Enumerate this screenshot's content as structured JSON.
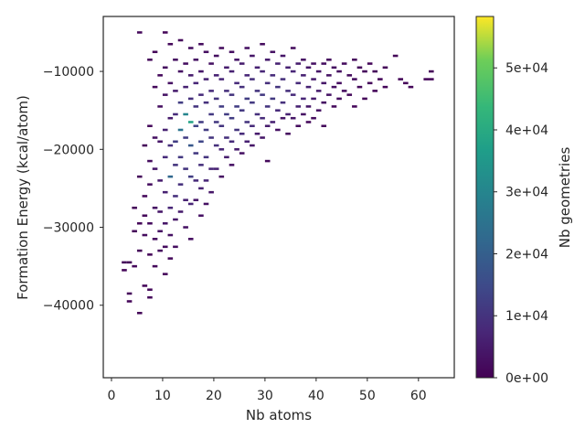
{
  "chart_data": {
    "type": "heatmap",
    "title": "",
    "xlabel": "Nb atoms",
    "ylabel": "Formation Energy (kcal/atom)",
    "xlim": [
      -1.6,
      67
    ],
    "ylim": [
      -49300,
      -2950
    ],
    "xticks": [
      "0",
      "10",
      "20",
      "30",
      "40",
      "50",
      "60"
    ],
    "xtick_values": [
      0,
      10,
      20,
      30,
      40,
      50,
      60
    ],
    "yticks": [
      "−10000",
      "−20000",
      "−30000",
      "−40000"
    ],
    "ytick_values": [
      -10000,
      -20000,
      -30000,
      -40000
    ],
    "grid": false,
    "colormap": "viridis",
    "colorbar": {
      "label": "Nb geometries",
      "range": [
        0,
        58300
      ],
      "ticks": [
        "0e+00",
        "1e+04",
        "2e+04",
        "3e+04",
        "4e+04",
        "5e+04"
      ],
      "tick_values": [
        0,
        10000,
        20000,
        30000,
        40000,
        50000
      ]
    },
    "cell_columns": "[Nb atoms, formation energy, count]",
    "cells": [
      [
        2,
        -34500,
        1500
      ],
      [
        2,
        -35500,
        1000
      ],
      [
        3,
        -38500,
        1200
      ],
      [
        3,
        -39500,
        800
      ],
      [
        3,
        -34500,
        900
      ],
      [
        4,
        -30500,
        1000
      ],
      [
        4,
        -35000,
        1500
      ],
      [
        4,
        -27500,
        800
      ],
      [
        5,
        -5000,
        1500
      ],
      [
        5,
        -23500,
        1200
      ],
      [
        5,
        -29500,
        1000
      ],
      [
        5,
        -41000,
        900
      ],
      [
        5,
        -33000,
        1100
      ],
      [
        6,
        -19500,
        1000
      ],
      [
        6,
        -26000,
        1500
      ],
      [
        6,
        -31000,
        2000
      ],
      [
        6,
        -37500,
        1000
      ],
      [
        6,
        -28500,
        1200
      ],
      [
        7,
        -8500,
        1200
      ],
      [
        7,
        -17000,
        1500
      ],
      [
        7,
        -21500,
        2000
      ],
      [
        7,
        -24500,
        2500
      ],
      [
        7,
        -29500,
        1800
      ],
      [
        7,
        -33500,
        1000
      ],
      [
        7,
        -38000,
        1500
      ],
      [
        7,
        -39000,
        1200
      ],
      [
        8,
        -7500,
        1000
      ],
      [
        8,
        -12000,
        1500
      ],
      [
        8,
        -18500,
        3000
      ],
      [
        8,
        -22500,
        4000
      ],
      [
        8,
        -27500,
        3000
      ],
      [
        8,
        -31500,
        2000
      ],
      [
        8,
        -35000,
        1500
      ],
      [
        9,
        -10500,
        1500
      ],
      [
        9,
        -14500,
        2500
      ],
      [
        9,
        -19000,
        4000
      ],
      [
        9,
        -24000,
        5000
      ],
      [
        9,
        -28000,
        4000
      ],
      [
        9,
        -30500,
        3000
      ],
      [
        9,
        -33000,
        2000
      ],
      [
        10,
        -5000,
        1000
      ],
      [
        10,
        -9500,
        2000
      ],
      [
        10,
        -13000,
        3500
      ],
      [
        10,
        -17500,
        6000
      ],
      [
        10,
        -21000,
        8000
      ],
      [
        10,
        -25500,
        6000
      ],
      [
        10,
        -29500,
        4000
      ],
      [
        10,
        -32500,
        2000
      ],
      [
        10,
        -36000,
        1200
      ],
      [
        11,
        -6500,
        1500
      ],
      [
        11,
        -11500,
        3000
      ],
      [
        11,
        -16000,
        5000
      ],
      [
        11,
        -19500,
        9000
      ],
      [
        11,
        -23500,
        22000
      ],
      [
        11,
        -27500,
        7000
      ],
      [
        11,
        -31000,
        3000
      ],
      [
        11,
        -34000,
        1500
      ],
      [
        12,
        -8500,
        2500
      ],
      [
        12,
        -12500,
        5000
      ],
      [
        12,
        -15500,
        8000
      ],
      [
        12,
        -19000,
        12000
      ],
      [
        12,
        -22000,
        10000
      ],
      [
        12,
        -26000,
        9000
      ],
      [
        12,
        -29000,
        4000
      ],
      [
        12,
        -32500,
        2500
      ],
      [
        13,
        -6000,
        1500
      ],
      [
        13,
        -10000,
        3000
      ],
      [
        13,
        -14000,
        12000
      ],
      [
        13,
        -17500,
        25000
      ],
      [
        13,
        -21000,
        11000
      ],
      [
        13,
        -24500,
        9000
      ],
      [
        13,
        -28000,
        5000
      ],
      [
        14,
        -9000,
        2500
      ],
      [
        14,
        -12000,
        6000
      ],
      [
        14,
        -15500,
        30000
      ],
      [
        14,
        -18500,
        12000
      ],
      [
        14,
        -22500,
        10000
      ],
      [
        14,
        -26500,
        6000
      ],
      [
        14,
        -30000,
        3000
      ],
      [
        15,
        -7000,
        2500
      ],
      [
        15,
        -10500,
        5000
      ],
      [
        15,
        -13500,
        9000
      ],
      [
        15,
        -16500,
        38000
      ],
      [
        15,
        -19500,
        18000
      ],
      [
        15,
        -23500,
        12000
      ],
      [
        15,
        -27000,
        7000
      ],
      [
        15,
        -31500,
        2500
      ],
      [
        16,
        -8500,
        3000
      ],
      [
        16,
        -11500,
        7000
      ],
      [
        16,
        -14500,
        10000
      ],
      [
        16,
        -17000,
        14000
      ],
      [
        16,
        -20500,
        11000
      ],
      [
        16,
        -24000,
        8000
      ],
      [
        16,
        -26500,
        4000
      ],
      [
        17,
        -6500,
        2000
      ],
      [
        17,
        -10000,
        4000
      ],
      [
        17,
        -13000,
        8000
      ],
      [
        17,
        -16500,
        12000
      ],
      [
        17,
        -19000,
        14000
      ],
      [
        17,
        -22000,
        9000
      ],
      [
        17,
        -25000,
        6000
      ],
      [
        17,
        -28500,
        3000
      ],
      [
        18,
        -7500,
        2500
      ],
      [
        18,
        -11000,
        6000
      ],
      [
        18,
        -14000,
        9000
      ],
      [
        18,
        -17500,
        12000
      ],
      [
        18,
        -21000,
        10000
      ],
      [
        18,
        -24000,
        7000
      ],
      [
        18,
        -27000,
        3000
      ],
      [
        19,
        -9000,
        3000
      ],
      [
        19,
        -12500,
        8000
      ],
      [
        19,
        -15500,
        11000
      ],
      [
        19,
        -18500,
        10000
      ],
      [
        19,
        -22500,
        7000
      ],
      [
        19,
        -25500,
        4000
      ],
      [
        20,
        -8000,
        2500
      ],
      [
        20,
        -10500,
        6000
      ],
      [
        20,
        -13500,
        10000
      ],
      [
        20,
        -16500,
        11000
      ],
      [
        20,
        -19500,
        9000
      ],
      [
        20,
        -22500,
        6000
      ],
      [
        21,
        -7000,
        2000
      ],
      [
        21,
        -11000,
        7000
      ],
      [
        21,
        -14500,
        12000
      ],
      [
        21,
        -17000,
        10000
      ],
      [
        21,
        -20000,
        7000
      ],
      [
        21,
        -23500,
        3000
      ],
      [
        22,
        -9500,
        5000
      ],
      [
        22,
        -12500,
        9000
      ],
      [
        22,
        -15500,
        12000
      ],
      [
        22,
        -18500,
        9000
      ],
      [
        22,
        -21000,
        5000
      ],
      [
        23,
        -7500,
        2500
      ],
      [
        23,
        -10000,
        6000
      ],
      [
        23,
        -13000,
        10000
      ],
      [
        23,
        -16000,
        12000
      ],
      [
        23,
        -19000,
        8000
      ],
      [
        23,
        -22000,
        3000
      ],
      [
        24,
        -8500,
        4000
      ],
      [
        24,
        -11500,
        8000
      ],
      [
        24,
        -14500,
        12000
      ],
      [
        24,
        -17500,
        10000
      ],
      [
        24,
        -20000,
        5000
      ],
      [
        25,
        -9000,
        5000
      ],
      [
        25,
        -12000,
        9000
      ],
      [
        25,
        -15000,
        11000
      ],
      [
        25,
        -18000,
        8000
      ],
      [
        25,
        -20500,
        3000
      ],
      [
        26,
        -7000,
        3000
      ],
      [
        26,
        -10500,
        7000
      ],
      [
        26,
        -13500,
        12000
      ],
      [
        26,
        -16500,
        10000
      ],
      [
        26,
        -19000,
        6000
      ],
      [
        27,
        -8000,
        4000
      ],
      [
        27,
        -11000,
        9000
      ],
      [
        27,
        -14000,
        11000
      ],
      [
        27,
        -17000,
        8000
      ],
      [
        27,
        -19500,
        4000
      ],
      [
        28,
        -9500,
        6000
      ],
      [
        28,
        -12500,
        10000
      ],
      [
        28,
        -15500,
        9000
      ],
      [
        28,
        -18000,
        5000
      ],
      [
        29,
        -6500,
        2000
      ],
      [
        29,
        -10000,
        7000
      ],
      [
        29,
        -13000,
        11000
      ],
      [
        29,
        -16000,
        8000
      ],
      [
        29,
        -18500,
        4000
      ],
      [
        30,
        -8500,
        5000
      ],
      [
        30,
        -11500,
        9000
      ],
      [
        30,
        -14500,
        10000
      ],
      [
        30,
        -17000,
        5000
      ],
      [
        30,
        -21500,
        1500
      ],
      [
        31,
        -7500,
        3000
      ],
      [
        31,
        -10500,
        8000
      ],
      [
        31,
        -13500,
        11000
      ],
      [
        31,
        -16500,
        6000
      ],
      [
        32,
        -9000,
        6000
      ],
      [
        32,
        -12000,
        10000
      ],
      [
        32,
        -15000,
        8000
      ],
      [
        32,
        -17500,
        3000
      ],
      [
        33,
        -8000,
        4000
      ],
      [
        33,
        -11000,
        9000
      ],
      [
        33,
        -14000,
        9000
      ],
      [
        33,
        -16000,
        4000
      ],
      [
        34,
        -9500,
        6000
      ],
      [
        34,
        -12500,
        9000
      ],
      [
        34,
        -15500,
        6000
      ],
      [
        34,
        -18000,
        2000
      ],
      [
        35,
        -7000,
        2000
      ],
      [
        35,
        -10000,
        7000
      ],
      [
        35,
        -13000,
        8000
      ],
      [
        35,
        -16000,
        4000
      ],
      [
        36,
        -9000,
        5000
      ],
      [
        36,
        -11500,
        8000
      ],
      [
        36,
        -14500,
        6000
      ],
      [
        36,
        -17000,
        2000
      ],
      [
        37,
        -8500,
        3000
      ],
      [
        37,
        -10500,
        6000
      ],
      [
        37,
        -13500,
        7000
      ],
      [
        37,
        -15500,
        3000
      ],
      [
        38,
        -9500,
        4000
      ],
      [
        38,
        -12000,
        6000
      ],
      [
        38,
        -14500,
        4000
      ],
      [
        38,
        -16500,
        1500
      ],
      [
        39,
        -9000,
        3000
      ],
      [
        39,
        -11000,
        5000
      ],
      [
        39,
        -13500,
        5000
      ],
      [
        39,
        -16000,
        2000
      ],
      [
        40,
        -10000,
        4000
      ],
      [
        40,
        -12500,
        5000
      ],
      [
        40,
        -15000,
        3000
      ],
      [
        41,
        -9000,
        2500
      ],
      [
        41,
        -11500,
        4000
      ],
      [
        41,
        -14000,
        3000
      ],
      [
        41,
        -17000,
        1500
      ],
      [
        42,
        -8500,
        2000
      ],
      [
        42,
        -10500,
        3500
      ],
      [
        42,
        -13000,
        3500
      ],
      [
        43,
        -9500,
        2500
      ],
      [
        43,
        -12000,
        3000
      ],
      [
        43,
        -14500,
        1500
      ],
      [
        44,
        -10000,
        2500
      ],
      [
        44,
        -11500,
        2500
      ],
      [
        44,
        -13500,
        2000
      ],
      [
        45,
        -9000,
        2000
      ],
      [
        45,
        -12500,
        2000
      ],
      [
        46,
        -10500,
        2000
      ],
      [
        46,
        -13000,
        1500
      ],
      [
        47,
        -8500,
        1500
      ],
      [
        47,
        -11000,
        2000
      ],
      [
        47,
        -14500,
        1000
      ],
      [
        48,
        -9500,
        1500
      ],
      [
        48,
        -12000,
        1500
      ],
      [
        49,
        -10000,
        1500
      ],
      [
        49,
        -13500,
        1000
      ],
      [
        50,
        -11500,
        1500
      ],
      [
        50,
        -9000,
        1000
      ],
      [
        51,
        -10000,
        1200
      ],
      [
        51,
        -12500,
        1000
      ],
      [
        52,
        -11000,
        1200
      ],
      [
        53,
        -9500,
        1000
      ],
      [
        53,
        -12000,
        1000
      ],
      [
        55,
        -8000,
        1000
      ],
      [
        56,
        -11000,
        1000
      ],
      [
        57,
        -11500,
        1000
      ],
      [
        58,
        -12000,
        1000
      ],
      [
        61,
        -11000,
        1000
      ],
      [
        62,
        -10000,
        1000
      ],
      [
        62,
        -11000,
        1000
      ]
    ]
  }
}
